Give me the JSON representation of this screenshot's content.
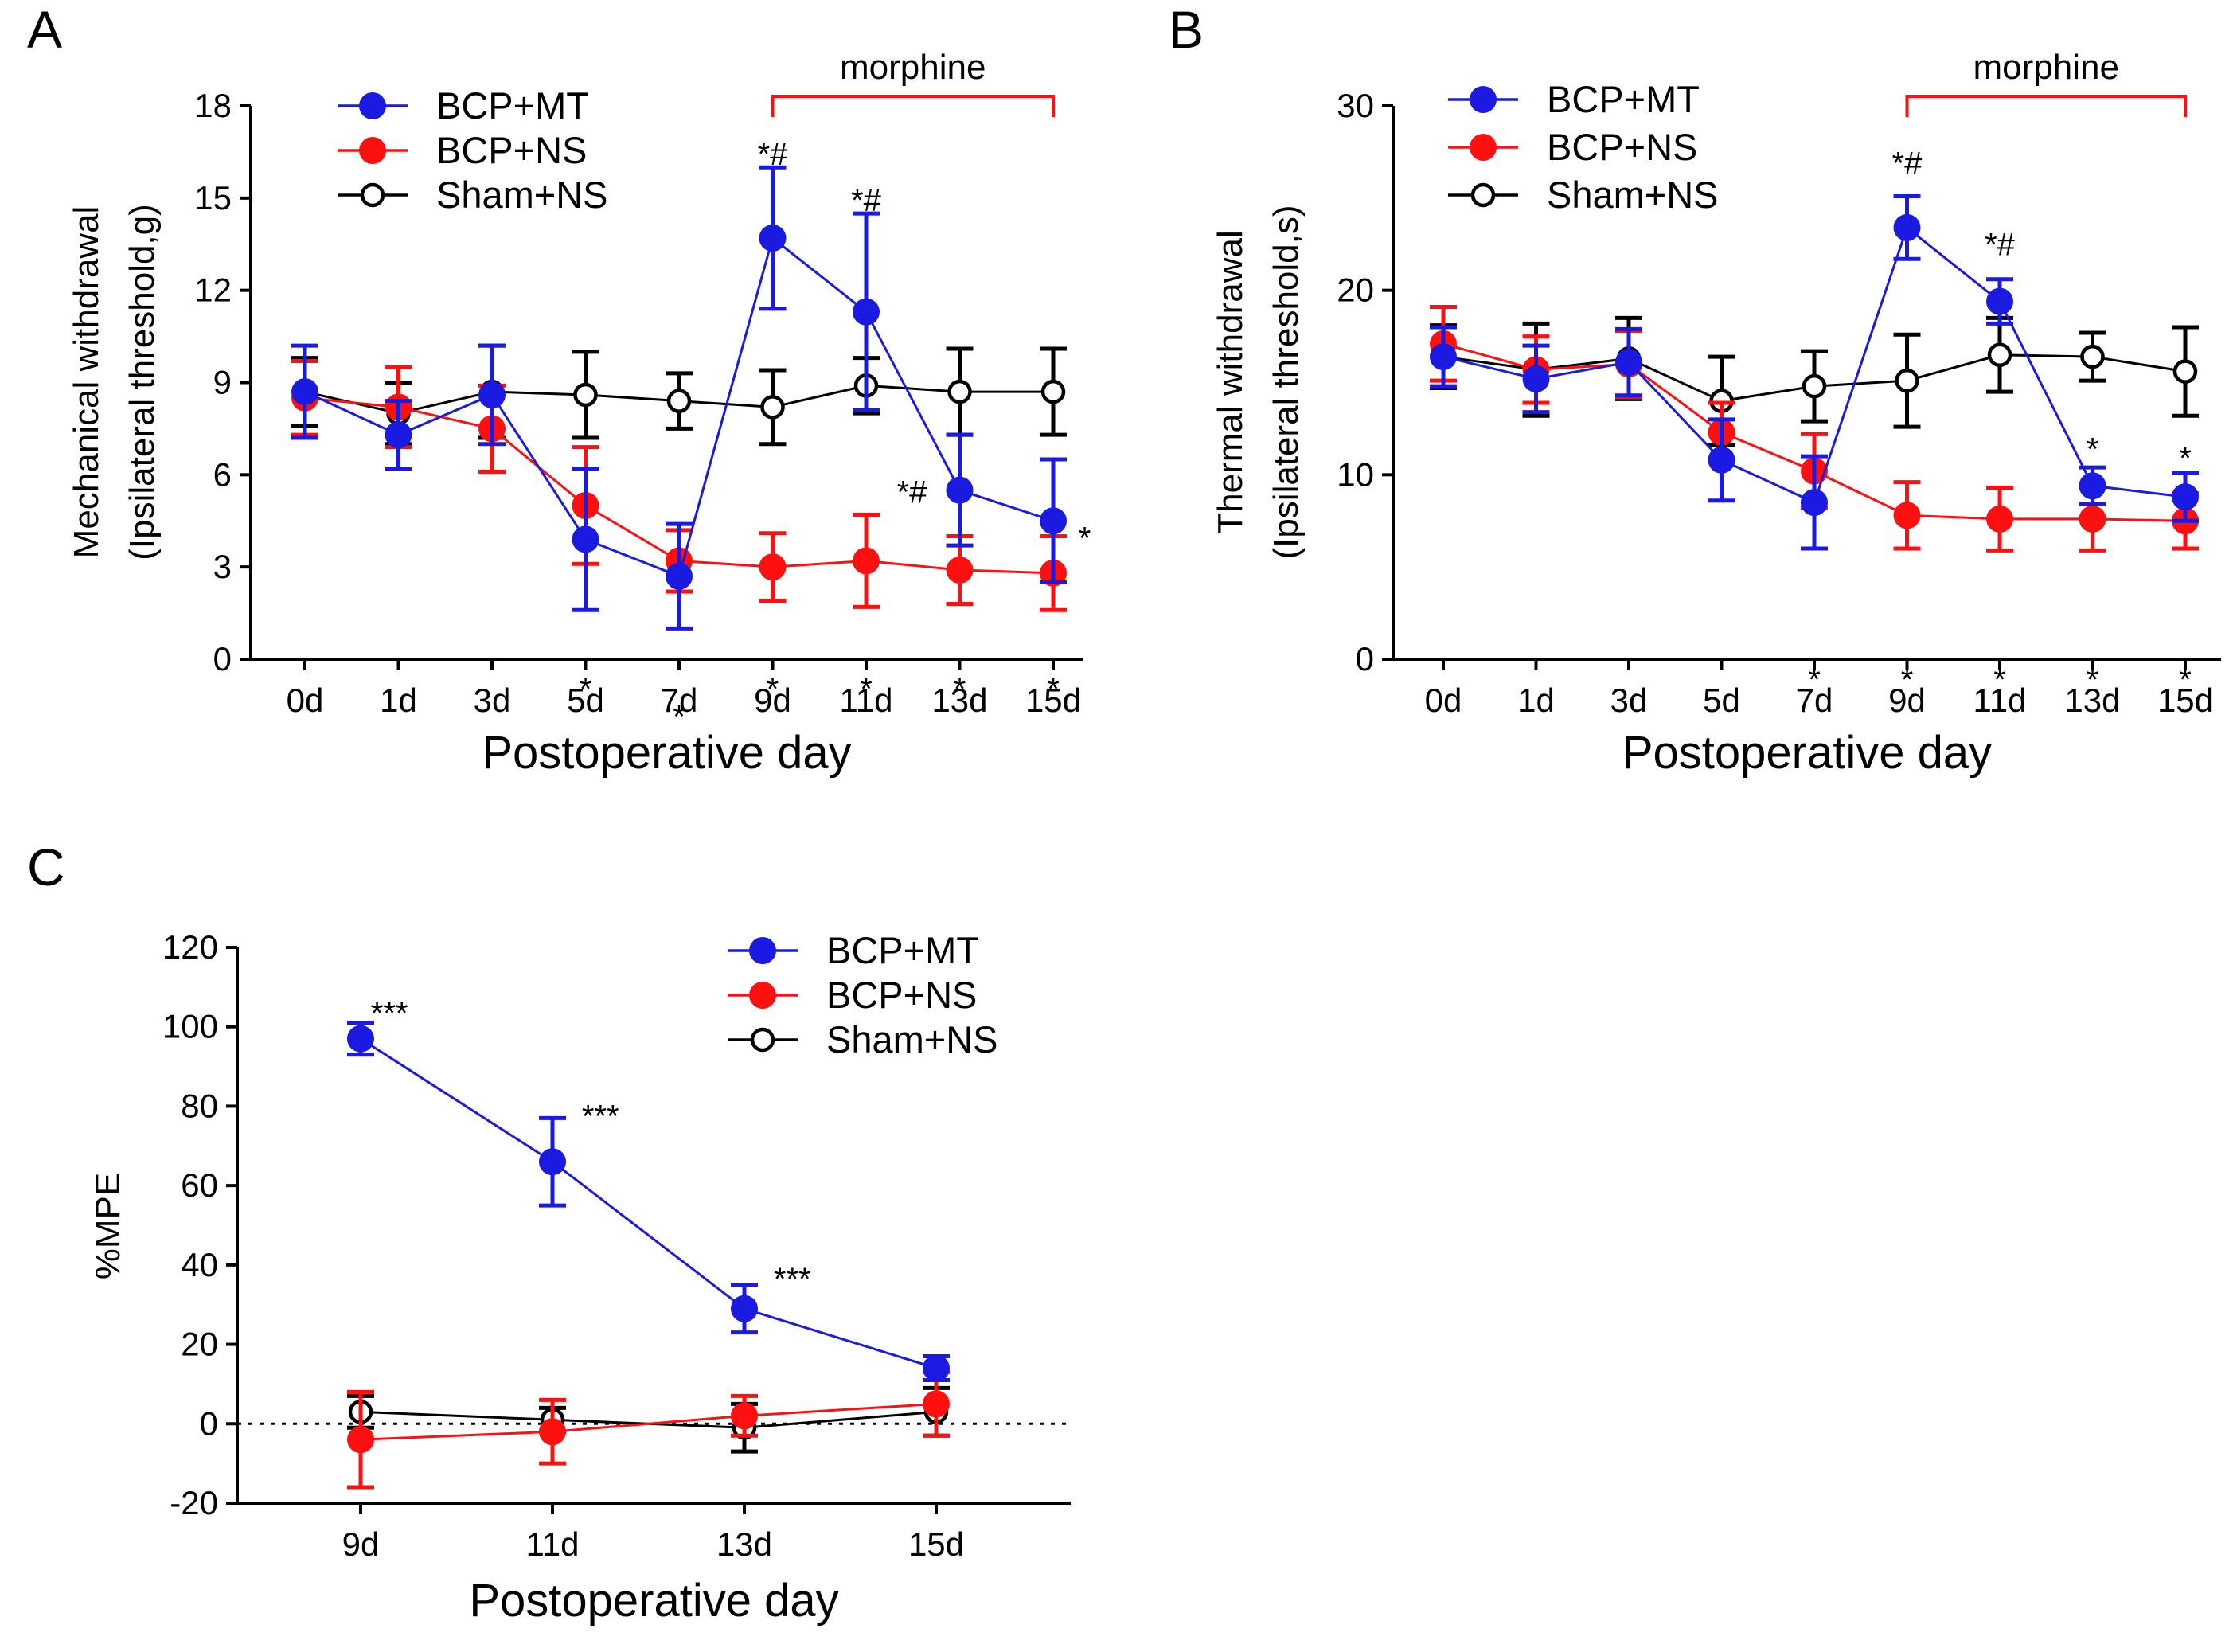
{
  "colors": {
    "blue": "#1a1ae0",
    "red": "#ff1010",
    "black": "#000000"
  },
  "chart_data": [
    {
      "type": "line",
      "panel": "A",
      "xlabel": "Postoperative day",
      "ylabel": [
        "Mechanical withdrawal",
        "(Ipsilateral threshold,g)"
      ],
      "categories": [
        "0d",
        "1d",
        "3d",
        "5d",
        "7d",
        "9d",
        "11d",
        "13d",
        "15d"
      ],
      "ylim": [
        0,
        18
      ],
      "yticks": [
        0,
        3,
        6,
        9,
        12,
        15,
        18
      ],
      "bracket": {
        "label": "morphine",
        "from": "9d",
        "to": "15d",
        "color": "red"
      },
      "series": [
        {
          "name": "BCP+MT",
          "color": "blue",
          "marker": "filled",
          "values": [
            8.7,
            7.3,
            8.6,
            3.9,
            2.7,
            13.7,
            11.3,
            5.5,
            4.5
          ],
          "errors": [
            1.5,
            1.1,
            1.6,
            2.3,
            1.7,
            2.3,
            3.2,
            1.8,
            2.0
          ]
        },
        {
          "name": "BCP+NS",
          "color": "red",
          "marker": "filled",
          "values": [
            8.5,
            8.2,
            7.5,
            5.0,
            3.2,
            3.0,
            3.2,
            2.9,
            2.8
          ],
          "errors": [
            1.2,
            1.3,
            1.4,
            1.9,
            1.0,
            1.1,
            1.5,
            1.1,
            1.2
          ]
        },
        {
          "name": "Sham+NS",
          "color": "black",
          "marker": "open",
          "values": [
            8.7,
            8.0,
            8.7,
            8.6,
            8.4,
            8.2,
            8.9,
            8.7,
            8.7
          ],
          "errors": [
            1.1,
            1.0,
            1.5,
            1.4,
            0.9,
            1.2,
            0.9,
            1.4,
            1.4
          ]
        }
      ],
      "annotations": [
        {
          "text": "*",
          "x": "5d",
          "y": -0.9
        },
        {
          "text": "*",
          "x": "7d",
          "y": -1.8
        },
        {
          "text": "*",
          "x": "9d",
          "y": -0.9
        },
        {
          "text": "*",
          "x": "11d",
          "y": -0.9
        },
        {
          "text": "*",
          "x": "13d",
          "y": -0.9
        },
        {
          "text": "*",
          "x": "15d",
          "y": -0.9
        },
        {
          "text": "*#",
          "x": "9d",
          "y": 16.5
        },
        {
          "text": "*#",
          "x": "11d",
          "y": 15.0
        },
        {
          "text": "*#",
          "x": "13d",
          "y": 5.5,
          "anchor": "end",
          "dx": -0.35
        },
        {
          "text": "*",
          "x": "15d",
          "y": 4.0,
          "anchor": "start",
          "dx": 0.27
        }
      ]
    },
    {
      "type": "line",
      "panel": "B",
      "xlabel": "Postoperative day",
      "ylabel": [
        "Thermal withdrawal",
        "(Ipsilateral threshold,s)"
      ],
      "categories": [
        "0d",
        "1d",
        "3d",
        "5d",
        "7d",
        "9d",
        "11d",
        "13d",
        "15d"
      ],
      "ylim": [
        0,
        30
      ],
      "yticks": [
        0,
        10,
        20,
        30
      ],
      "bracket": {
        "label": "morphine",
        "from": "9d",
        "to": "15d",
        "color": "red"
      },
      "series": [
        {
          "name": "BCP+MT",
          "color": "blue",
          "marker": "filled",
          "values": [
            16.4,
            15.2,
            16.1,
            10.8,
            8.5,
            23.4,
            19.4,
            9.4,
            8.8
          ],
          "errors": [
            1.6,
            1.8,
            1.8,
            2.2,
            2.5,
            1.7,
            1.2,
            1.0,
            1.3
          ]
        },
        {
          "name": "BCP+NS",
          "color": "red",
          "marker": "filled",
          "values": [
            17.1,
            15.7,
            16.0,
            12.3,
            10.2,
            7.8,
            7.6,
            7.6,
            7.5
          ],
          "errors": [
            2.0,
            1.8,
            1.8,
            1.6,
            2.0,
            1.8,
            1.7,
            1.7,
            1.5
          ]
        },
        {
          "name": "Sham+NS",
          "color": "black",
          "marker": "open",
          "values": [
            16.4,
            15.7,
            16.3,
            14.0,
            14.8,
            15.1,
            16.5,
            16.4,
            15.6
          ],
          "errors": [
            1.7,
            2.5,
            2.2,
            2.4,
            1.9,
            2.5,
            2.0,
            1.3,
            2.4
          ]
        }
      ],
      "annotations": [
        {
          "text": "*",
          "x": "7d",
          "y": -1.0
        },
        {
          "text": "*",
          "x": "9d",
          "y": -1.0
        },
        {
          "text": "*",
          "x": "11d",
          "y": -1.0
        },
        {
          "text": "*",
          "x": "13d",
          "y": -1.0
        },
        {
          "text": "*",
          "x": "15d",
          "y": -1.0
        },
        {
          "text": "*#",
          "x": "9d",
          "y": 27.0
        },
        {
          "text": "*#",
          "x": "11d",
          "y": 22.6
        },
        {
          "text": "*",
          "x": "13d",
          "y": 11.5
        },
        {
          "text": "*",
          "x": "15d",
          "y": 11.0
        }
      ]
    },
    {
      "type": "line",
      "panel": "C",
      "xlabel": "Postoperative day",
      "ylabel": [
        "%MPE"
      ],
      "categories": [
        "9d",
        "11d",
        "13d",
        "15d"
      ],
      "ylim": [
        -20,
        120
      ],
      "yticks": [
        -20,
        0,
        20,
        40,
        60,
        80,
        100,
        120
      ],
      "reference_line": 0,
      "series": [
        {
          "name": "BCP+MT",
          "color": "blue",
          "marker": "filled",
          "values": [
            97,
            66,
            29,
            14
          ],
          "errors": [
            4,
            11,
            6,
            3
          ]
        },
        {
          "name": "BCP+NS",
          "color": "red",
          "marker": "filled",
          "values": [
            -4,
            -2,
            2,
            5
          ],
          "errors": [
            12,
            8,
            5,
            8
          ]
        },
        {
          "name": "Sham+NS",
          "color": "black",
          "marker": "open",
          "values": [
            3,
            1,
            -1,
            3
          ],
          "errors": [
            4,
            3,
            6,
            6
          ]
        }
      ],
      "annotations": [
        {
          "text": "***",
          "x": "9d",
          "y": 104,
          "dx": 0.15
        },
        {
          "text": "***",
          "x": "11d",
          "y": 78,
          "dx": 0.25
        },
        {
          "text": "***",
          "x": "13d",
          "y": 37,
          "dx": 0.25
        }
      ]
    }
  ]
}
